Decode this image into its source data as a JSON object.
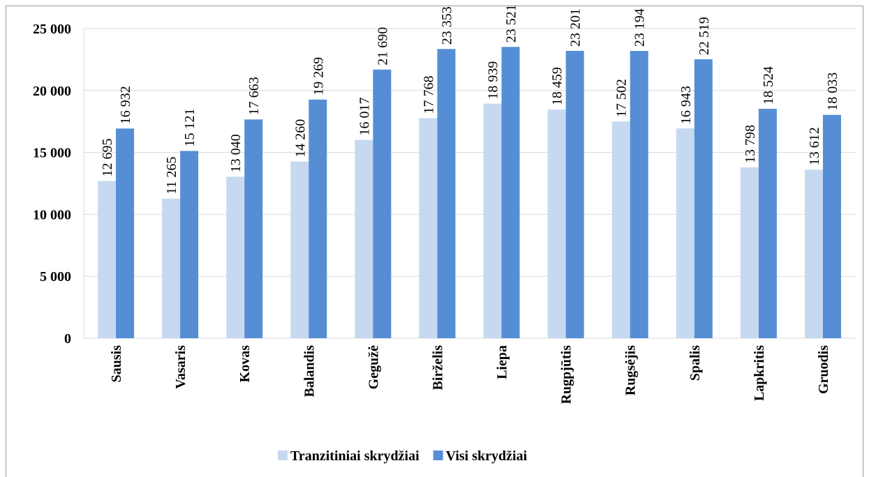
{
  "chart_data": {
    "type": "bar",
    "categories": [
      "Sausis",
      "Vasaris",
      "Kovas",
      "Balandis",
      "Gegužė",
      "Birželis",
      "Liepa",
      "Rugpjūtis",
      "Rugsėjis",
      "Spalis",
      "Lapkritis",
      "Gruodis"
    ],
    "series": [
      {
        "name": "Tranzitiniai skrydžiai",
        "color": "#c6d9f1",
        "values": [
          12695,
          11265,
          13040,
          14260,
          16017,
          17768,
          18939,
          18459,
          17502,
          16943,
          13798,
          13612
        ],
        "value_labels": [
          "12 695",
          "11 265",
          "13 040",
          "14 260",
          "16 017",
          "17 768",
          "18 939",
          "18 459",
          "17 502",
          "16 943",
          "13 798",
          "13 612"
        ]
      },
      {
        "name": "Visi skrydžiai",
        "color": "#558ed5",
        "values": [
          16932,
          15121,
          17663,
          19269,
          21690,
          23353,
          23521,
          23201,
          23194,
          22519,
          18524,
          18033
        ],
        "value_labels": [
          "16 932",
          "15 121",
          "17 663",
          "19 269",
          "21 690",
          "23 353",
          "23 521",
          "23 201",
          "23 194",
          "22 519",
          "18 524",
          "18 033"
        ]
      }
    ],
    "ylim": [
      0,
      25000
    ],
    "yticks": [
      {
        "value": 0,
        "label": "0"
      },
      {
        "value": 5000,
        "label": "5 000"
      },
      {
        "value": 10000,
        "label": "10 000"
      },
      {
        "value": 15000,
        "label": "15 000"
      },
      {
        "value": 20000,
        "label": "20 000"
      },
      {
        "value": 25000,
        "label": "25 000"
      }
    ],
    "grid": true,
    "legend": "bottom"
  }
}
